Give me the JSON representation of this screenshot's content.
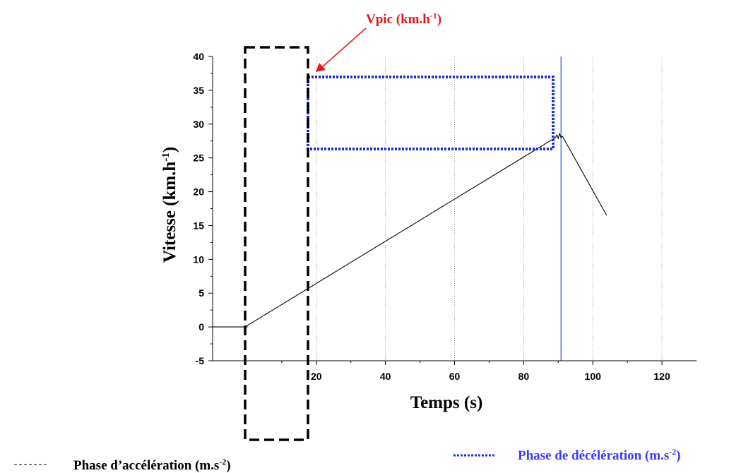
{
  "chart_data": {
    "type": "line",
    "xlabel": "Temps (s)",
    "ylabel": "Vitesse (km.h-1)",
    "ylabel_main": "Vitesse (km.h",
    "ylabel_sup": "-1",
    "ylabel_end": ")",
    "xlim": [
      -10,
      130
    ],
    "ylim": [
      -5,
      40
    ],
    "x_ticks": [
      20,
      40,
      60,
      80,
      100,
      120
    ],
    "y_ticks": [
      -5,
      0,
      5,
      10,
      15,
      20,
      25,
      30,
      35,
      40
    ],
    "grid_x": "dotted vertical",
    "series": [
      {
        "values": [
          {
            "x": -10,
            "y": 0
          },
          {
            "x": 0,
            "y": 0
          },
          {
            "x": 0,
            "y": 0.2
          },
          {
            "x": 89.2,
            "y": 28.0
          },
          {
            "x": 89.6,
            "y": 28.4
          },
          {
            "x": 90.0,
            "y": 27.9
          },
          {
            "x": 90.4,
            "y": 28.6
          },
          {
            "x": 90.8,
            "y": 28.0
          },
          {
            "x": 91.2,
            "y": 28.2
          },
          {
            "x": 104,
            "y": 16.5
          }
        ]
      }
    ],
    "marker_line_x": 90.8,
    "annotations": {
      "vpic_label": "Vpic (km.h",
      "vpic_sup": "-1",
      "vpic_end": ")"
    },
    "legend": {
      "acceleration": {
        "label": "Phase d’accélération (m.s",
        "sup": "-2",
        "end": ")"
      },
      "deceleration": {
        "label": "Phase de décélération (m.s",
        "sup": "-2",
        "end": ")"
      }
    },
    "colors": {
      "curve": "#000000",
      "marker_line": "#3a4fe0",
      "annotation": "#e8141c",
      "deceleration": "#1b2fd8",
      "acceleration": "#000000"
    }
  }
}
